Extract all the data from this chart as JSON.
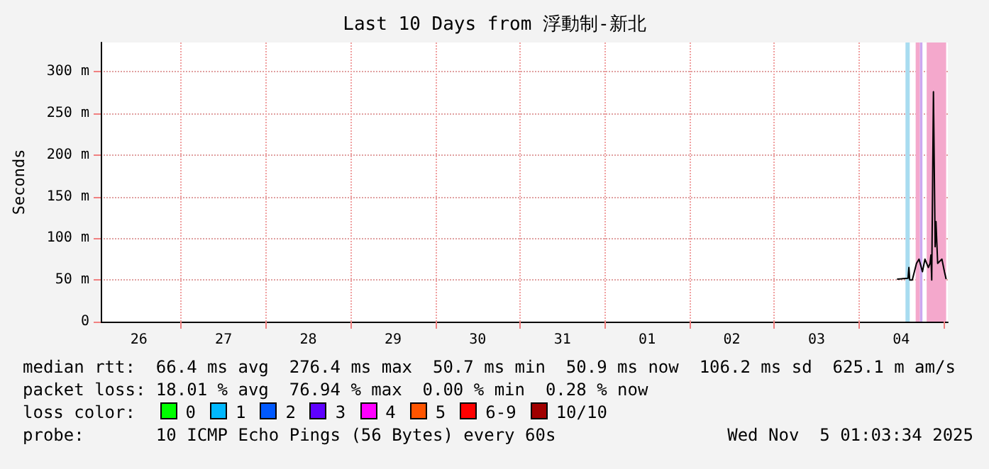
{
  "chart_data": {
    "type": "line",
    "title": "Last 10 Days from 浮動制-新北",
    "ylabel": "Seconds",
    "x": [
      "2025-11-04T10:48",
      "2025-11-04T13:55",
      "2025-11-04T14:10",
      "2025-11-04T14:24",
      "2025-11-04T15:07",
      "2025-11-04T16:19",
      "2025-11-04T17:02",
      "2025-11-04T18:00",
      "2025-11-04T18:43",
      "2025-11-04T19:41",
      "2025-11-04T20:10",
      "2025-11-04T20:24",
      "2025-11-04T20:38",
      "2025-11-04T21:07",
      "2025-11-04T21:36",
      "2025-11-04T21:50",
      "2025-11-04T22:19",
      "2025-11-04T23:31",
      "2025-11-05T00:14",
      "2025-11-05T00:43"
    ],
    "series": [
      {
        "color": "#000000",
        "values": [
          51,
          52,
          65,
          50,
          50,
          70,
          75,
          60,
          75,
          65,
          70,
          80,
          50,
          276,
          90,
          120,
          70,
          75,
          60,
          51
        ]
      }
    ],
    "xlim": [
      "2025-10-26T01:12",
      "2025-11-05T01:12"
    ],
    "xticks": [
      {
        "value": "2025-10-26T12:00",
        "label": "26"
      },
      {
        "value": "2025-10-27T12:00",
        "label": "27"
      },
      {
        "value": "2025-10-28T12:00",
        "label": "28"
      },
      {
        "value": "2025-10-29T12:00",
        "label": "29"
      },
      {
        "value": "2025-10-30T12:00",
        "label": "30"
      },
      {
        "value": "2025-10-31T12:00",
        "label": "31"
      },
      {
        "value": "2025-11-01T12:00",
        "label": "01"
      },
      {
        "value": "2025-11-02T12:00",
        "label": "02"
      },
      {
        "value": "2025-11-03T12:00",
        "label": "03"
      },
      {
        "value": "2025-11-04T12:00",
        "label": "04"
      },
      {
        "value": "2025-10-27T00:00",
        "label": null
      },
      {
        "value": "2025-10-28T00:00",
        "label": null
      },
      {
        "value": "2025-10-29T00:00",
        "label": null
      },
      {
        "value": "2025-10-30T00:00",
        "label": null
      },
      {
        "value": "2025-10-31T00:00",
        "label": null
      },
      {
        "value": "2025-11-01T00:00",
        "label": null
      },
      {
        "value": "2025-11-02T00:00",
        "label": null
      },
      {
        "value": "2025-11-03T00:00",
        "label": null
      },
      {
        "value": "2025-11-04T00:00",
        "label": null
      },
      {
        "value": "2025-11-05T00:00",
        "label": null
      }
    ],
    "ylim": [
      0,
      335
    ],
    "yticks": [
      {
        "value": 0,
        "label": "0"
      },
      {
        "value": 50,
        "label": "50 m"
      },
      {
        "value": 100,
        "label": "100 m"
      },
      {
        "value": 150,
        "label": "150 m"
      },
      {
        "value": 200,
        "label": "200 m"
      },
      {
        "value": 250,
        "label": "250 m"
      },
      {
        "value": 300,
        "label": "300 m"
      }
    ],
    "bands": [
      {
        "axis": "x",
        "from": "2025-11-04T13:12",
        "to": "2025-11-04T14:24",
        "color": "#a8dcf0"
      },
      {
        "axis": "x",
        "from": "2025-11-04T16:05",
        "to": "2025-11-04T17:17",
        "color": "#f4a8cc"
      },
      {
        "axis": "x",
        "from": "2025-11-04T17:17",
        "to": "2025-11-04T18:00",
        "color": "#cca8f0"
      },
      {
        "axis": "x",
        "from": "2025-11-04T19:12",
        "to": "2025-11-05T00:43",
        "color": "#f4a8cc"
      }
    ],
    "grid": true,
    "marker": "none",
    "line_style": "solid",
    "annotations": [
      "median rtt:  66.4 ms avg  276.4 ms max  50.7 ms min  50.9 ms now  106.2 ms sd  625.1 m am/s",
      "packet loss: 18.01 % avg  76.94 % max  0.00 % min  0.28 % now",
      "loss color:",
      "0",
      "1",
      "2",
      "3",
      "4",
      "5",
      "6-9",
      "10/10",
      "probe:       10 ICMP Echo Pings (56 Bytes) every 60s",
      "Wed Nov  5 01:03:34 2025"
    ]
  }
}
